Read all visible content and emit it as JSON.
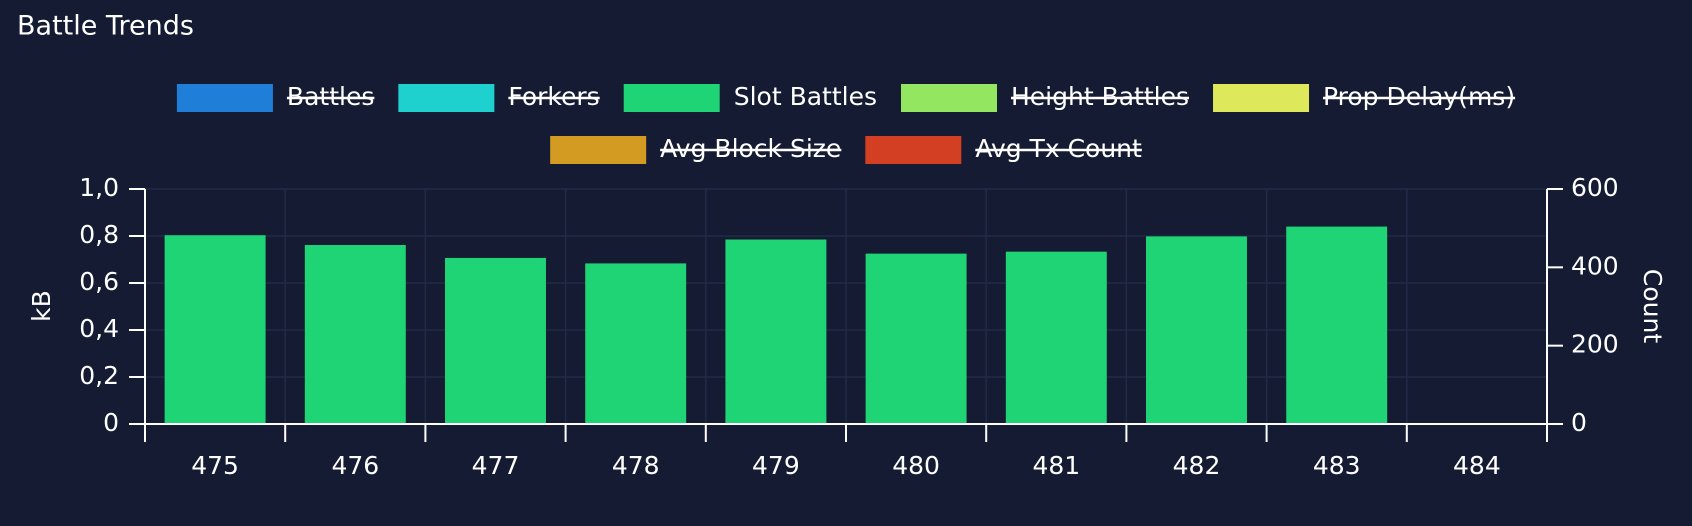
{
  "chart_data": {
    "type": "bar",
    "title": "Battle Trends",
    "categories": [
      "475",
      "476",
      "477",
      "478",
      "479",
      "480",
      "481",
      "482",
      "483",
      "484"
    ],
    "series": [
      {
        "name": "Battles",
        "color": "#1f7fd8",
        "visible": false,
        "values": [
          null,
          null,
          null,
          null,
          null,
          null,
          null,
          null,
          null,
          null
        ]
      },
      {
        "name": "Forkers",
        "color": "#1ed1cf",
        "visible": false,
        "values": [
          null,
          null,
          null,
          null,
          null,
          null,
          null,
          null,
          null,
          null
        ]
      },
      {
        "name": "Slot Battles",
        "color": "#1ed475",
        "visible": true,
        "axis": "y2",
        "values": [
          482,
          457,
          424,
          410,
          471,
          435,
          440,
          479,
          504,
          0
        ]
      },
      {
        "name": "Height Battles",
        "color": "#93e660",
        "visible": false,
        "values": [
          null,
          null,
          null,
          null,
          null,
          null,
          null,
          null,
          null,
          null
        ]
      },
      {
        "name": "Prop Delay(ms)",
        "color": "#dde85a",
        "visible": false,
        "values": [
          null,
          null,
          null,
          null,
          null,
          null,
          null,
          null,
          null,
          null
        ]
      },
      {
        "name": "Avg Block Size",
        "color": "#d39b21",
        "visible": false,
        "values": [
          null,
          null,
          null,
          null,
          null,
          null,
          null,
          null,
          null,
          null
        ]
      },
      {
        "name": "Avg Tx Count",
        "color": "#d33f22",
        "visible": false,
        "values": [
          null,
          null,
          null,
          null,
          null,
          null,
          null,
          null,
          null,
          null
        ]
      }
    ],
    "y_label": "kB",
    "y2_label": "Count",
    "ylim": [
      0,
      1
    ],
    "yticks": [
      0,
      {
        "value": 0.2,
        "label": "0,2"
      },
      {
        "value": 0.4,
        "label": "0,4"
      },
      {
        "value": 0.6,
        "label": "0,6"
      },
      {
        "value": 0.8,
        "label": "0,8"
      },
      {
        "value": 1,
        "label": "1,0"
      }
    ],
    "y2lim": [
      0,
      600
    ],
    "y2ticks": [
      0,
      200,
      400,
      600
    ],
    "grid": true
  }
}
